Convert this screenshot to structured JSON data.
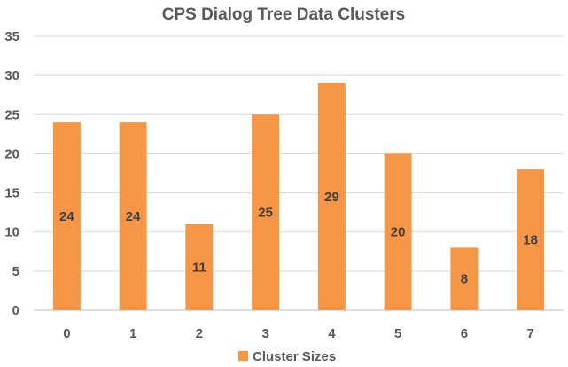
{
  "chart_data": {
    "type": "bar",
    "title": "CPS Dialog Tree Data Clusters",
    "categories": [
      "0",
      "1",
      "2",
      "3",
      "4",
      "5",
      "6",
      "7"
    ],
    "series": [
      {
        "name": "Cluster Sizes",
        "values": [
          24,
          24,
          11,
          25,
          29,
          20,
          8,
          18
        ],
        "color": "#F79646"
      }
    ],
    "xlabel": "",
    "ylabel": "",
    "ylim": [
      0,
      35
    ],
    "yticks": [
      0,
      5,
      10,
      15,
      20,
      25,
      30,
      35
    ],
    "grid": true,
    "gridline_color": "#D9D9D9",
    "axis_color": "#BFBFBF",
    "data_labels": true,
    "legend_position": "bottom"
  }
}
